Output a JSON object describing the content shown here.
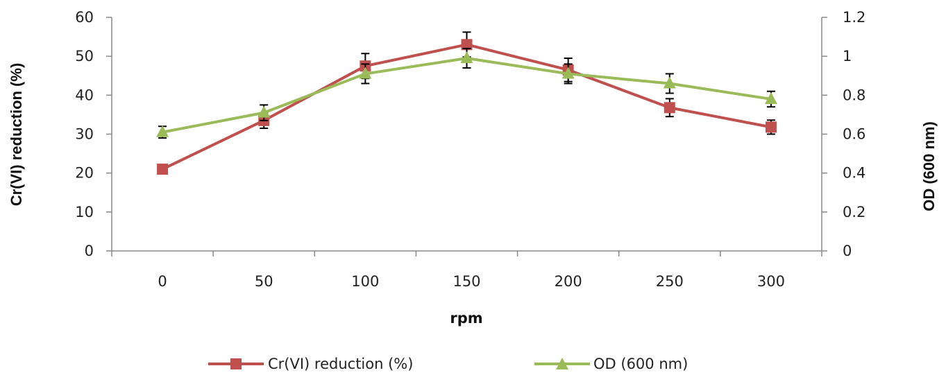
{
  "chart_data": {
    "type": "line",
    "xlabel": "rpm",
    "ylabel_left": "Cr(VI) reduction (%)",
    "ylabel_right": "OD (600 nm)",
    "x": [
      0,
      50,
      100,
      150,
      200,
      250,
      300
    ],
    "x_tick_labels": [
      "0",
      "50",
      "100",
      "150",
      "200",
      "250",
      "300"
    ],
    "y_left_ticks": [
      "0",
      "10",
      "20",
      "30",
      "40",
      "50",
      "60"
    ],
    "y_right_ticks": [
      "0",
      "0.2",
      "0.4",
      "0.6",
      "0.8",
      "1",
      "1.2"
    ],
    "ylim_left": [
      0,
      60
    ],
    "ylim_right": [
      0,
      1.2
    ],
    "grid": false,
    "legend_position": "bottom",
    "series": [
      {
        "name": "Cr(VI) reduction (%)",
        "axis": "left",
        "marker": "square",
        "color": "#c0504d",
        "values": [
          21,
          33.5,
          47.5,
          53,
          46.5,
          36.8,
          31.8
        ],
        "errors": [
          1.0,
          2.0,
          3.2,
          3.2,
          3.0,
          2.3,
          1.8
        ]
      },
      {
        "name": "OD (600 nm)",
        "axis": "right",
        "marker": "triangle",
        "color": "#9bbb59",
        "values": [
          0.61,
          0.71,
          0.91,
          0.99,
          0.91,
          0.86,
          0.78
        ],
        "errors": [
          0.03,
          0.04,
          0.05,
          0.05,
          0.05,
          0.05,
          0.04
        ]
      }
    ]
  }
}
